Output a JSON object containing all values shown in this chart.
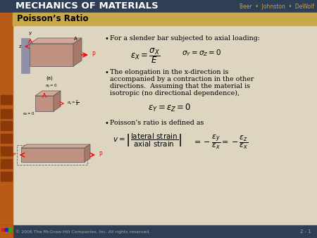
{
  "title_bar_color": "#2d3e55",
  "title_text": "MECHANICS OF MATERIALS",
  "title_authors": "Beer  •  Johnston  •  DeWolf",
  "subtitle_bg_color": "#c8a84b",
  "subtitle_text": "Poisson’s Ratio",
  "footer_bg_color": "#2d3e55",
  "footer_text": "© 2006 The McGraw-Hill Companies, Inc. All rights reserved.",
  "footer_right": "2 - 1",
  "main_bg_color": "#ddd5c0",
  "left_sidebar_color": "#b85a18",
  "icon_color": "#8a3a08",
  "wall_color": "#9090a8",
  "bar_front_color": "#c09080",
  "bar_top_color": "#d4a898",
  "bar_right_color": "#a87868",
  "bullet1": "For a slender bar subjected to axial loading:",
  "bullet2_line1": "The elongation in the x-direction is",
  "bullet2_line2": "accompanied by a contraction in the other",
  "bullet2_line3": "directions.  Assuming that the material is",
  "bullet2_line4": "isotropic (no directional dependence),",
  "bullet3": "Poisson’s ratio is defined as",
  "body_text_color": "#000000",
  "title_text_color": "#ffffff",
  "authors_color": "#d4a030",
  "footer_text_color": "#aaaaaa"
}
